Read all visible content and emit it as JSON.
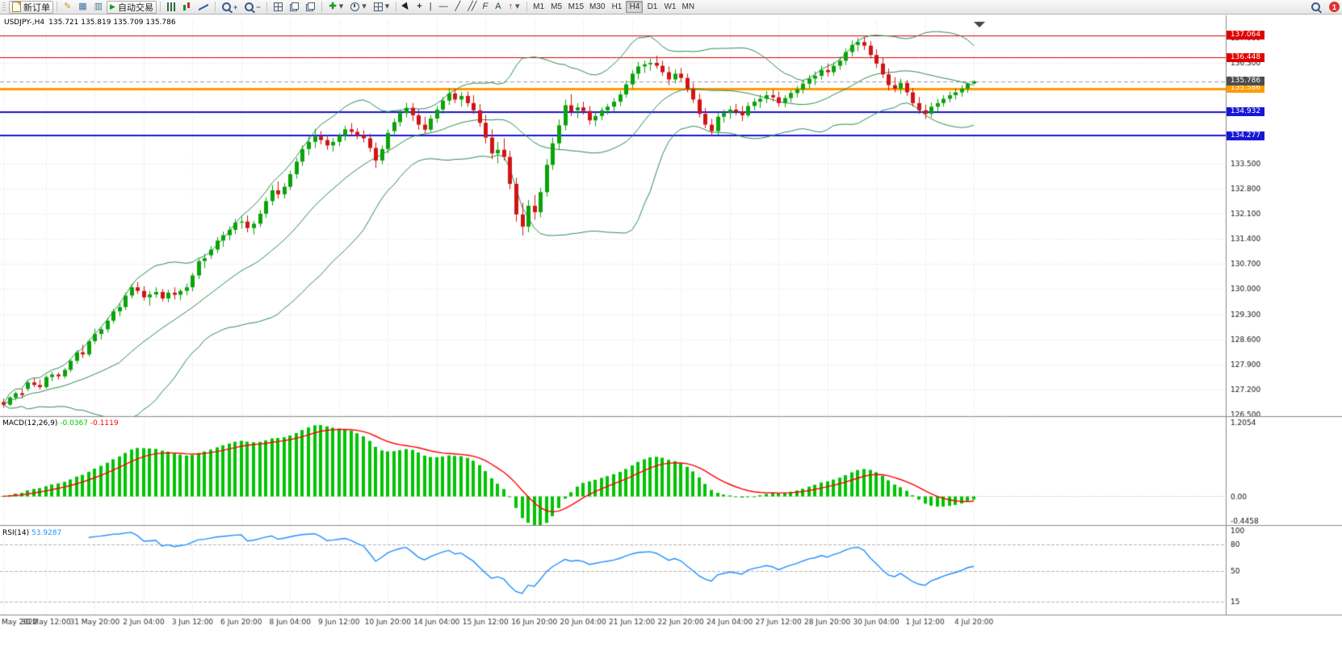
{
  "toolbar": {
    "new_order_label": "新订单",
    "autotrading_label": "自动交易",
    "timeframe_labels": [
      "M1",
      "M5",
      "M15",
      "M30",
      "H1",
      "H4",
      "D1",
      "W1",
      "MN"
    ],
    "active_timeframe": "H4",
    "notification_count": "1",
    "icons": {
      "metaeditor": "✎",
      "profiles": "▦",
      "market_watch": "▥",
      "autotrading_play": "▶",
      "indicators_plus": "✚",
      "caret": "▾",
      "crosshair": "+",
      "vertical_line": "|",
      "horizontal_line": "—",
      "trendline": "╱",
      "channel": "╱╱",
      "fibonacci": "F",
      "text_tool": "A",
      "arrows_tool": "↑"
    }
  },
  "chart_data": {
    "type": "candlestick",
    "symbol": "USDJPY-",
    "timeframe": "H4",
    "window_title": "USDJPY-,H4",
    "ohlc_text": "135.721 135.819 135.709 135.786",
    "open": "135.721",
    "high": "135.819",
    "low": "135.709",
    "close": "135.786",
    "up_color": "#0aa30a",
    "down_color": "#d21414",
    "price_axis": {
      "min": 126.46,
      "max": 137.49,
      "tick_labels": [
        "137.000",
        "136.300",
        "135.600",
        "134.900",
        "134.200",
        "133.500",
        "132.800",
        "132.100",
        "131.400",
        "130.700",
        "130.000",
        "129.300",
        "128.600",
        "127.900",
        "127.200",
        "126.500"
      ]
    },
    "time_labels": [
      {
        "idx": 0,
        "text": "May 2022"
      },
      {
        "idx": 7,
        "text": "30 May 12:00"
      },
      {
        "idx": 15,
        "text": "31 May 20:00"
      },
      {
        "idx": 23,
        "text": "2 Jun 04:00"
      },
      {
        "idx": 31,
        "text": "3 Jun 12:00"
      },
      {
        "idx": 39,
        "text": "6 Jun 20:00"
      },
      {
        "idx": 47,
        "text": "8 Jun 04:00"
      },
      {
        "idx": 55,
        "text": "9 Jun 12:00"
      },
      {
        "idx": 63,
        "text": "10 Jun 20:00"
      },
      {
        "idx": 71,
        "text": "14 Jun 04:00"
      },
      {
        "idx": 79,
        "text": "15 Jun 12:00"
      },
      {
        "idx": 87,
        "text": "16 Jun 20:00"
      },
      {
        "idx": 95,
        "text": "20 Jun 04:00"
      },
      {
        "idx": 103,
        "text": "21 Jun 12:00"
      },
      {
        "idx": 111,
        "text": "22 Jun 20:00"
      },
      {
        "idx": 119,
        "text": "24 Jun 04:00"
      },
      {
        "idx": 127,
        "text": "27 Jun 12:00"
      },
      {
        "idx": 135,
        "text": "28 Jun 20:00"
      },
      {
        "idx": 143,
        "text": "30 Jun 04:00"
      },
      {
        "idx": 151,
        "text": "1 Jul 12:00"
      },
      {
        "idx": 159,
        "text": "4 Jul 20:00"
      }
    ],
    "hlines": [
      {
        "price": 137.064,
        "label": "137.064",
        "color": "#e00000",
        "width": 1
      },
      {
        "price": 136.448,
        "label": "136.448",
        "color": "#e00000",
        "width": 1
      },
      {
        "price": 135.586,
        "label": "135.586",
        "color": "#ff9c00",
        "width": 3
      },
      {
        "price": 134.932,
        "label": "134.932",
        "color": "#1717d6",
        "width": 2
      },
      {
        "price": 134.277,
        "label": "134.277",
        "color": "#1717d6",
        "width": 2
      }
    ],
    "bid": {
      "price": 135.786,
      "label": "135.786",
      "tag_color": "#4d4d4d",
      "line_color": "#9b9b9b"
    },
    "candles": [
      [
        126.85,
        126.95,
        126.7,
        126.78
      ],
      [
        126.78,
        127.02,
        126.74,
        126.98
      ],
      [
        126.98,
        127.15,
        126.9,
        127.1
      ],
      [
        127.1,
        127.22,
        126.96,
        127.05
      ],
      [
        127.22,
        127.45,
        127.15,
        127.4
      ],
      [
        127.4,
        127.52,
        127.27,
        127.33
      ],
      [
        127.33,
        127.48,
        127.2,
        127.27
      ],
      [
        127.27,
        127.6,
        127.22,
        127.55
      ],
      [
        127.55,
        127.7,
        127.44,
        127.62
      ],
      [
        127.62,
        127.68,
        127.48,
        127.57
      ],
      [
        127.57,
        127.8,
        127.51,
        127.75
      ],
      [
        127.75,
        128.05,
        127.69,
        128.0
      ],
      [
        128.0,
        128.3,
        127.92,
        128.24
      ],
      [
        128.24,
        128.45,
        128.08,
        128.18
      ],
      [
        128.18,
        128.6,
        128.12,
        128.55
      ],
      [
        128.55,
        128.9,
        128.47,
        128.75
      ],
      [
        128.75,
        128.95,
        128.6,
        128.88
      ],
      [
        128.88,
        129.2,
        128.79,
        129.12
      ],
      [
        129.12,
        129.45,
        129.04,
        129.38
      ],
      [
        129.38,
        129.6,
        129.24,
        129.5
      ],
      [
        129.5,
        129.9,
        129.42,
        129.82
      ],
      [
        129.82,
        130.15,
        129.74,
        130.05
      ],
      [
        130.05,
        130.2,
        129.86,
        129.95
      ],
      [
        129.95,
        130.08,
        129.68,
        129.77
      ],
      [
        129.77,
        129.95,
        129.54,
        129.85
      ],
      [
        129.85,
        130.05,
        129.76,
        129.92
      ],
      [
        129.92,
        130.0,
        129.66,
        129.74
      ],
      [
        129.74,
        129.98,
        129.63,
        129.9
      ],
      [
        129.9,
        130.05,
        129.71,
        129.84
      ],
      [
        129.84,
        130.0,
        129.69,
        129.95
      ],
      [
        129.95,
        130.15,
        129.83,
        130.05
      ],
      [
        130.05,
        130.45,
        129.94,
        130.38
      ],
      [
        130.38,
        130.85,
        130.28,
        130.78
      ],
      [
        130.78,
        130.98,
        130.58,
        130.86
      ],
      [
        130.94,
        131.2,
        130.84,
        131.1
      ],
      [
        131.1,
        131.45,
        131.0,
        131.35
      ],
      [
        131.35,
        131.6,
        131.18,
        131.5
      ],
      [
        131.5,
        131.75,
        131.36,
        131.65
      ],
      [
        131.65,
        131.95,
        131.53,
        131.85
      ],
      [
        131.85,
        132.02,
        131.68,
        131.88
      ],
      [
        131.88,
        132.05,
        131.58,
        131.7
      ],
      [
        131.7,
        131.9,
        131.52,
        131.82
      ],
      [
        131.82,
        132.2,
        131.73,
        132.1
      ],
      [
        132.1,
        132.55,
        131.98,
        132.45
      ],
      [
        132.45,
        132.9,
        132.33,
        132.75
      ],
      [
        132.75,
        133.0,
        132.52,
        132.64
      ],
      [
        132.64,
        132.95,
        132.52,
        132.85
      ],
      [
        132.85,
        133.3,
        132.76,
        133.2
      ],
      [
        133.2,
        133.65,
        133.08,
        133.55
      ],
      [
        133.55,
        134.0,
        133.43,
        133.9
      ],
      [
        133.9,
        134.25,
        133.73,
        134.1
      ],
      [
        134.1,
        134.47,
        133.93,
        134.25
      ],
      [
        134.25,
        134.4,
        134.03,
        134.15
      ],
      [
        134.15,
        134.3,
        133.88,
        134.0
      ],
      [
        134.0,
        134.2,
        133.83,
        134.1
      ],
      [
        134.1,
        134.35,
        133.98,
        134.28
      ],
      [
        134.28,
        134.55,
        134.13,
        134.45
      ],
      [
        134.45,
        134.62,
        134.28,
        134.38
      ],
      [
        134.38,
        134.48,
        134.18,
        134.28
      ],
      [
        134.28,
        134.42,
        134.08,
        134.2
      ],
      [
        134.2,
        134.33,
        133.82,
        133.93
      ],
      [
        133.93,
        134.08,
        133.37,
        133.58
      ],
      [
        133.58,
        134.0,
        133.48,
        133.9
      ],
      [
        133.9,
        134.45,
        133.78,
        134.35
      ],
      [
        134.4,
        134.75,
        134.28,
        134.65
      ],
      [
        134.65,
        135.0,
        134.53,
        134.9
      ],
      [
        134.9,
        135.19,
        134.78,
        135.05
      ],
      [
        135.05,
        135.18,
        134.68,
        134.84
      ],
      [
        134.84,
        135.0,
        134.44,
        134.58
      ],
      [
        134.58,
        134.8,
        134.33,
        134.44
      ],
      [
        134.44,
        134.85,
        134.38,
        134.75
      ],
      [
        134.75,
        135.1,
        134.63,
        135.0
      ],
      [
        135.0,
        135.35,
        134.88,
        135.25
      ],
      [
        135.25,
        135.6,
        135.13,
        135.45
      ],
      [
        135.45,
        135.58,
        135.18,
        135.28
      ],
      [
        135.28,
        135.48,
        135.08,
        135.38
      ],
      [
        135.38,
        135.5,
        135.08,
        135.18
      ],
      [
        135.18,
        135.4,
        134.88,
        134.98
      ],
      [
        134.98,
        135.15,
        134.52,
        134.63
      ],
      [
        134.63,
        134.85,
        134.06,
        134.22
      ],
      [
        134.22,
        134.45,
        133.62,
        133.78
      ],
      [
        133.78,
        134.1,
        133.5,
        133.88
      ],
      [
        133.88,
        134.2,
        133.58,
        133.68
      ],
      [
        133.68,
        133.85,
        132.78,
        132.93
      ],
      [
        132.93,
        133.1,
        131.88,
        132.08
      ],
      [
        132.08,
        132.4,
        131.49,
        131.74
      ],
      [
        131.74,
        132.48,
        131.58,
        132.32
      ],
      [
        132.32,
        132.62,
        131.93,
        132.14
      ],
      [
        132.14,
        132.82,
        132.0,
        132.7
      ],
      [
        132.7,
        133.62,
        132.58,
        133.46
      ],
      [
        133.46,
        134.22,
        133.32,
        134.06
      ],
      [
        134.06,
        134.72,
        133.9,
        134.56
      ],
      [
        134.56,
        135.28,
        134.42,
        135.12
      ],
      [
        135.12,
        135.43,
        134.82,
        134.95
      ],
      [
        134.98,
        135.18,
        134.76,
        135.06
      ],
      [
        135.06,
        135.22,
        134.86,
        134.96
      ],
      [
        134.96,
        135.1,
        134.58,
        134.7
      ],
      [
        134.7,
        134.92,
        134.54,
        134.82
      ],
      [
        134.82,
        135.06,
        134.7,
        134.98
      ],
      [
        134.98,
        135.16,
        134.86,
        135.08
      ],
      [
        135.08,
        135.32,
        134.94,
        135.22
      ],
      [
        135.22,
        135.52,
        135.1,
        135.42
      ],
      [
        135.42,
        135.8,
        135.33,
        135.7
      ],
      [
        135.7,
        136.1,
        135.58,
        136.0
      ],
      [
        136.0,
        136.33,
        135.84,
        136.2
      ],
      [
        136.2,
        136.36,
        136.02,
        136.26
      ],
      [
        136.26,
        136.42,
        136.08,
        136.3
      ],
      [
        136.3,
        136.5,
        136.14,
        136.22
      ],
      [
        136.22,
        136.36,
        135.94,
        136.04
      ],
      [
        136.04,
        136.2,
        135.68,
        135.84
      ],
      [
        135.84,
        136.12,
        135.73,
        136.0
      ],
      [
        136.0,
        136.16,
        135.78,
        135.88
      ],
      [
        135.88,
        136.0,
        135.48,
        135.58
      ],
      [
        135.58,
        135.74,
        135.18,
        135.28
      ],
      [
        135.28,
        135.44,
        134.78,
        134.88
      ],
      [
        134.88,
        135.04,
        134.48,
        134.58
      ],
      [
        134.58,
        134.74,
        134.27,
        134.4
      ],
      [
        134.4,
        134.92,
        134.3,
        134.8
      ],
      [
        134.8,
        135.0,
        134.64,
        134.9
      ],
      [
        134.9,
        135.1,
        134.74,
        135.0
      ],
      [
        135.0,
        135.16,
        134.84,
        134.94
      ],
      [
        134.94,
        135.1,
        134.68,
        134.84
      ],
      [
        134.84,
        135.2,
        134.78,
        135.1
      ],
      [
        135.1,
        135.32,
        134.98,
        135.22
      ],
      [
        135.22,
        135.42,
        135.04,
        135.3
      ],
      [
        135.3,
        135.52,
        135.18,
        135.4
      ],
      [
        135.4,
        135.56,
        135.23,
        135.34
      ],
      [
        135.34,
        135.5,
        135.08,
        135.18
      ],
      [
        135.18,
        135.4,
        135.06,
        135.32
      ],
      [
        135.32,
        135.54,
        135.2,
        135.46
      ],
      [
        135.46,
        135.66,
        135.34,
        135.56
      ],
      [
        135.56,
        135.82,
        135.44,
        135.72
      ],
      [
        135.72,
        135.96,
        135.58,
        135.86
      ],
      [
        135.86,
        136.06,
        135.68,
        135.94
      ],
      [
        135.94,
        136.22,
        135.83,
        136.1
      ],
      [
        136.1,
        136.28,
        135.92,
        136.04
      ],
      [
        136.04,
        136.32,
        135.94,
        136.22
      ],
      [
        136.22,
        136.48,
        136.1,
        136.36
      ],
      [
        136.36,
        136.7,
        136.24,
        136.6
      ],
      [
        136.6,
        136.92,
        136.48,
        136.8
      ],
      [
        136.8,
        137.0,
        136.62,
        136.88
      ],
      [
        136.88,
        137.02,
        136.66,
        136.78
      ],
      [
        136.78,
        136.9,
        136.42,
        136.52
      ],
      [
        136.52,
        136.68,
        136.16,
        136.28
      ],
      [
        136.28,
        136.44,
        135.88,
        135.98
      ],
      [
        135.98,
        136.14,
        135.53,
        135.68
      ],
      [
        135.68,
        135.9,
        135.48,
        135.58
      ],
      [
        135.58,
        135.86,
        135.44,
        135.74
      ],
      [
        135.74,
        135.82,
        135.38,
        135.48
      ],
      [
        135.48,
        135.6,
        135.08,
        135.18
      ],
      [
        135.18,
        135.35,
        134.88,
        134.98
      ],
      [
        134.98,
        135.14,
        134.74,
        134.88
      ],
      [
        134.88,
        135.2,
        134.78,
        135.08
      ],
      [
        135.08,
        135.3,
        134.94,
        135.18
      ],
      [
        135.18,
        135.4,
        135.08,
        135.3
      ],
      [
        135.3,
        135.5,
        135.2,
        135.4
      ],
      [
        135.4,
        135.6,
        135.28,
        135.48
      ],
      [
        135.48,
        135.68,
        135.36,
        135.58
      ],
      [
        135.58,
        135.76,
        135.46,
        135.72
      ],
      [
        135.721,
        135.819,
        135.709,
        135.786
      ]
    ],
    "indicators": {
      "bollinger": {
        "period": 20,
        "deviation": 2,
        "color": "#2e8b57"
      },
      "macd": {
        "name": "MACD(12,26,9)",
        "value": "-0.0367",
        "signal_value": "-0.1119",
        "fast": 12,
        "slow": 26,
        "signal": 9,
        "scale_min": -0.4458,
        "scale_max": 1.2054,
        "axis_labels": [
          "1.2054",
          "0.00",
          "-0.4458"
        ],
        "hist_color": "#00c400",
        "signal_color": "#ff0000"
      },
      "rsi": {
        "name": "RSI(14)",
        "value": "53.9287",
        "period": 14,
        "scale_min": 0,
        "scale_max": 100,
        "levels": [
          80,
          50,
          15
        ],
        "axis_labels": [
          {
            "v": 100,
            "t": "100"
          },
          {
            "v": 80,
            "t": "80"
          },
          {
            "v": 50,
            "t": "50"
          },
          {
            "v": 15,
            "t": "15"
          }
        ],
        "line_color": "#1e90ff"
      }
    }
  }
}
